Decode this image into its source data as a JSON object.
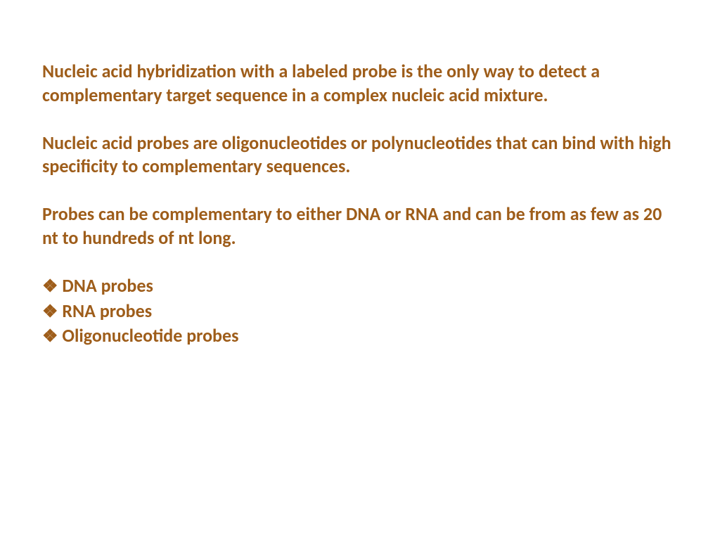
{
  "text_color": "#9e5d1a",
  "background_color": "#ffffff",
  "font_size": 26,
  "font_weight": "bold",
  "paragraphs": {
    "p1": "Nucleic acid hybridization with a labeled probe is the only way to detect a complementary target sequence in a complex nucleic acid mixture.",
    "p2": "Nucleic acid probes are oligonucleotides or polynucleotides that can bind with high specificity to complementary sequences.",
    "p3": "Probes can be complementary to either DNA or RNA and can be from as few as 20 nt to hundreds of nt long."
  },
  "bullets": {
    "marker": "❖",
    "items": {
      "b1": "DNA probes",
      "b2": "RNA probes",
      "b3": "Oligonucleotide probes"
    }
  }
}
